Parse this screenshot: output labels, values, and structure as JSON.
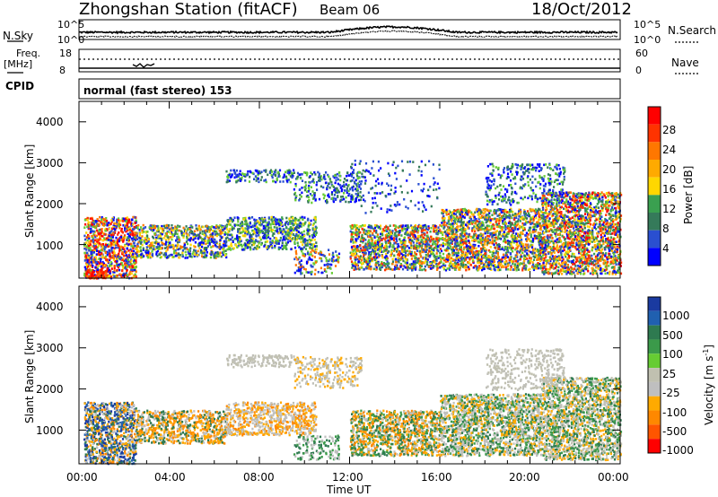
{
  "header": {
    "station": "Zhongshan Station (fitACF)",
    "beam": "Beam 06",
    "date": "18/Oct/2012"
  },
  "top_panel": {
    "left_label": "N.Sky",
    "right_label": "N.Search",
    "left_ticks": [
      "10^5",
      "10^0"
    ],
    "right_ticks": [
      "10^5",
      "10^0"
    ]
  },
  "freq_panel": {
    "left_label_1": "Freq.",
    "left_label_2": "[MHz]",
    "right_label": "Nave",
    "left_ticks": [
      "18",
      "8"
    ],
    "right_ticks": [
      "60",
      "0"
    ]
  },
  "cpid": {
    "label": "CPID",
    "text": "normal (fast stereo) 153"
  },
  "colors": {
    "power": [
      "#0000ff",
      "#2a4fd0",
      "#357a5a",
      "#3aa050",
      "#66cc33",
      "#ffd700",
      "#ffaa00",
      "#ff7700",
      "#ff3300",
      "#ff0000"
    ],
    "velocity": [
      "#1a3aa0",
      "#2060b0",
      "#2e7a50",
      "#3b9a4a",
      "#66cc33",
      "#c0c0b0",
      "#bfbfbf",
      "#ffaa00",
      "#ff8800",
      "#ff5500",
      "#ff0000"
    ],
    "gray_ground": "#c0c0b8"
  },
  "chart_data": [
    {
      "type": "heatmap",
      "name": "power",
      "ylabel": "Slant Range [km]",
      "yticks": [
        "4000",
        "3000",
        "2000",
        "1000"
      ],
      "ylim": [
        180,
        4500
      ],
      "colorbar_label": "Power [dB]",
      "colorbar_ticks": [
        "28",
        "24",
        "20",
        "16",
        "12",
        "8",
        "4"
      ],
      "x_ticks": [
        "00:00",
        "04:00",
        "08:00",
        "12:00",
        "16:00",
        "20:00",
        "00:00"
      ],
      "xlim_hours": [
        0,
        24
      ]
    },
    {
      "type": "heatmap",
      "name": "velocity",
      "ylabel": "Slant Range [km]",
      "yticks": [
        "4000",
        "3000",
        "2000",
        "1000"
      ],
      "ylim": [
        180,
        4500
      ],
      "colorbar_label": "Velocity [m s",
      "colorbar_label_sup": "-1",
      "colorbar_label_end": "]",
      "colorbar_ticks": [
        "1000",
        "500",
        "100",
        "25",
        "-25",
        "-100",
        "-500",
        "-1000"
      ],
      "x_ticks": [
        "00:00",
        "04:00",
        "08:00",
        "12:00",
        "16:00",
        "20:00",
        "00:00"
      ],
      "xlim_hours": [
        0,
        24
      ],
      "xlabel": "Time UT"
    }
  ]
}
